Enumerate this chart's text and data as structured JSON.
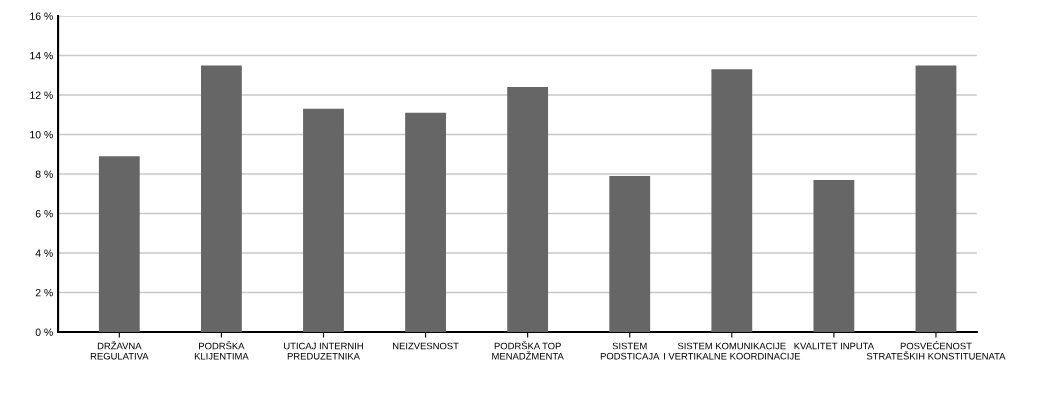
{
  "chart_data": {
    "type": "bar",
    "categories": [
      "DRŽAVNA\nREGULATIVA",
      "PODRŠKA\nKLIJENTIMA",
      "UTICAJ INTERNIH\nPREDUZETNIKA",
      "NEIZVESNOST",
      "PODRŠKA TOP\nMENADŽMENTA",
      "SISTEM\nPODSTICAJA",
      "SISTEM KOMUNIKACIJE\nI VERTIKALNE KOORDINACIJE",
      "KVALITET INPUTA",
      "POSVEĆENOST\nSTRATEŠKIH KONSTITUENATA"
    ],
    "values": [
      8.9,
      13.5,
      11.3,
      11.1,
      12.4,
      7.9,
      13.3,
      7.7,
      13.5
    ],
    "color": "#666666",
    "ylim": [
      0,
      16
    ],
    "yticks": [
      {
        "value": 0,
        "label": "0 %"
      },
      {
        "value": 2,
        "label": "2 %"
      },
      {
        "value": 4,
        "label": "4 %"
      },
      {
        "value": 6,
        "label": "6 %"
      },
      {
        "value": 8,
        "label": "8 %"
      },
      {
        "value": 10,
        "label": "10 %"
      },
      {
        "value": 12,
        "label": "12 %"
      },
      {
        "value": 14,
        "label": "14 %"
      },
      {
        "value": 16,
        "label": "16 %"
      }
    ],
    "grid": "y"
  }
}
